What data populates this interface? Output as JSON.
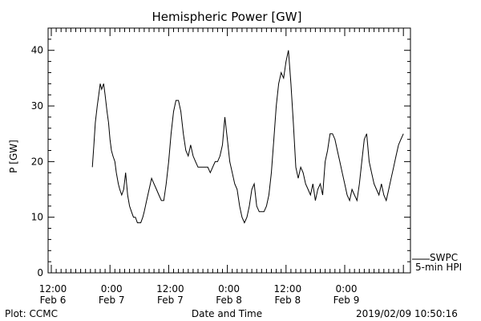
{
  "chart_data": {
    "type": "line",
    "title": "Hemispheric Power [GW]",
    "ylabel": "P [GW]",
    "xlabel": "Date and Time",
    "ylim": [
      0,
      44
    ],
    "yticks": [
      0,
      10,
      20,
      30,
      40
    ],
    "x_unit": "hours since 2019-02-06 12:00",
    "xlim": [
      0,
      72
    ],
    "xticks": [
      {
        "x": 0,
        "time": "12:00",
        "date": "Feb 6"
      },
      {
        "x": 12,
        "time": "0:00",
        "date": "Feb 7"
      },
      {
        "x": 24,
        "time": "12:00",
        "date": "Feb 7"
      },
      {
        "x": 36,
        "time": "0:00",
        "date": "Feb 8"
      },
      {
        "x": 48,
        "time": "12:00",
        "date": "Feb 8"
      },
      {
        "x": 60,
        "time": "0:00",
        "date": "Feb 9"
      }
    ],
    "series": [
      {
        "name": "5-min HPI",
        "source": "SWPC",
        "x": [
          8.4,
          8.7,
          9.0,
          9.4,
          9.7,
          10.0,
          10.3,
          10.7,
          11.0,
          11.4,
          11.7,
          12.0,
          12.3,
          12.6,
          13.0,
          13.3,
          13.7,
          14.0,
          14.4,
          14.8,
          15.2,
          15.6,
          16.0,
          16.4,
          16.8,
          17.2,
          17.6,
          18.0,
          18.3,
          18.7,
          19.0,
          19.5,
          20.0,
          20.5,
          21.0,
          21.5,
          22.0,
          22.5,
          23.0,
          23.5,
          24.0,
          24.5,
          25.0,
          25.5,
          26.0,
          26.5,
          27.0,
          27.5,
          28.0,
          28.5,
          29.0,
          29.5,
          30.0,
          30.5,
          31.0,
          31.5,
          32.0,
          32.5,
          33.0,
          33.5,
          34.0,
          34.5,
          35.0,
          35.5,
          36.0,
          36.5,
          37.0,
          37.5,
          38.0,
          38.5,
          39.0,
          39.5,
          40.0,
          40.5,
          41.0,
          41.5,
          42.0,
          42.5,
          43.0,
          43.5,
          44.0,
          44.5,
          45.0,
          45.5,
          46.0,
          46.5,
          47.0,
          47.5,
          48.0,
          48.5,
          49.0,
          49.5,
          50.0,
          50.5,
          51.0,
          51.5,
          52.0,
          52.5,
          53.0,
          53.5,
          54.0,
          54.5,
          55.0,
          55.5,
          56.0,
          56.5,
          57.0,
          57.5,
          58.0,
          58.5,
          59.0,
          59.5,
          60.0,
          60.5,
          61.0,
          61.5,
          62.0,
          62.5,
          63.0,
          63.5,
          64.0,
          64.5,
          65.0,
          65.5,
          66.0,
          66.5,
          67.0,
          67.5,
          68.0,
          68.5,
          69.0,
          69.5,
          70.0,
          70.5,
          71.0,
          71.5,
          72.0
        ],
        "values": [
          19,
          23,
          27,
          30,
          32,
          34,
          33,
          34,
          32,
          29,
          27,
          24,
          22,
          21,
          20,
          18,
          16,
          15,
          14,
          15,
          18,
          14,
          12,
          11,
          10,
          10,
          9,
          9,
          9,
          10,
          11,
          13,
          15,
          17,
          16,
          15,
          14,
          13,
          13,
          16,
          20,
          25,
          29,
          31,
          31,
          29,
          25,
          22,
          21,
          23,
          21,
          20,
          19,
          19,
          19,
          19,
          19,
          18,
          19,
          20,
          20,
          21,
          23,
          28,
          24,
          20,
          18,
          16,
          15,
          12,
          10,
          9,
          10,
          12,
          15,
          16,
          12,
          11,
          11,
          11,
          12,
          14,
          18,
          24,
          30,
          34,
          36,
          35,
          38,
          40,
          34,
          27,
          19,
          17,
          19,
          18,
          16,
          15,
          14,
          16,
          13,
          15,
          16,
          14,
          20,
          22,
          25,
          25,
          24,
          22,
          20,
          18,
          16,
          14,
          13,
          15,
          14,
          13,
          16,
          20,
          24,
          25,
          20,
          18,
          16,
          15,
          14,
          16,
          14,
          13,
          15,
          17,
          19,
          21,
          23,
          24,
          25
        ]
      }
    ],
    "legend": [
      "SWPC",
      "5-min HPI"
    ],
    "grid": false
  },
  "labels": {
    "title": "Hemispheric Power [GW]",
    "ylabel": "P [GW]",
    "xlabel": "Date and Time",
    "plot_credit": "Plot: CCMC",
    "timestamp": "2019/02/09 10:50:16",
    "legend_source": "SWPC",
    "legend_series": "5-min HPI"
  }
}
